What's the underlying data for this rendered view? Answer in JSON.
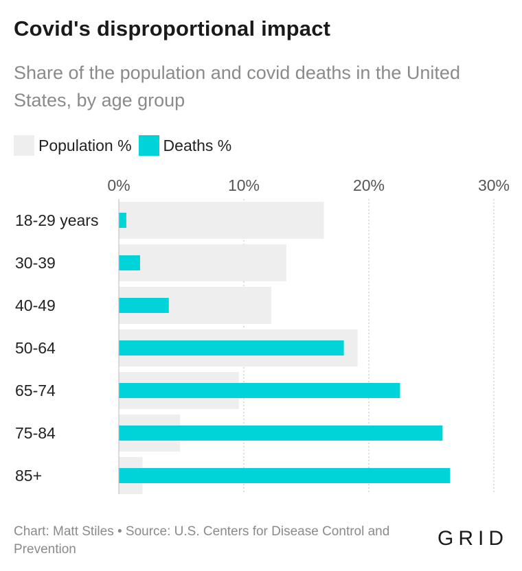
{
  "header": {
    "title": "Covid's disproportional impact",
    "subtitle": "Share of the population and covid deaths in the United States, by age group"
  },
  "legend": {
    "population_label": "Population %",
    "deaths_label": "Deaths %"
  },
  "colors": {
    "population": "#eeeeee",
    "deaths": "#00d4d8",
    "grid": "#bbbbbb",
    "text": "#222222"
  },
  "chart_data": {
    "type": "bar",
    "orientation": "horizontal",
    "categories": [
      "18-29 years",
      "30-39",
      "40-49",
      "50-64",
      "65-74",
      "75-84",
      "85+"
    ],
    "series": [
      {
        "name": "Population %",
        "values": [
          16.4,
          13.4,
          12.2,
          19.1,
          9.6,
          4.9,
          1.9
        ]
      },
      {
        "name": "Deaths %",
        "values": [
          0.6,
          1.7,
          4.0,
          18.0,
          22.5,
          25.9,
          26.5
        ]
      }
    ],
    "xlim": [
      0,
      30
    ],
    "xticks": [
      0,
      10,
      20,
      30
    ],
    "xtick_labels": [
      "0%",
      "10%",
      "20%",
      "30%"
    ],
    "grid": true,
    "legend_position": "top-left"
  },
  "footer": {
    "credit": "Chart: Matt Stiles • Source: U.S. Centers for Disease Control and Prevention",
    "logo_text": "GRID"
  }
}
